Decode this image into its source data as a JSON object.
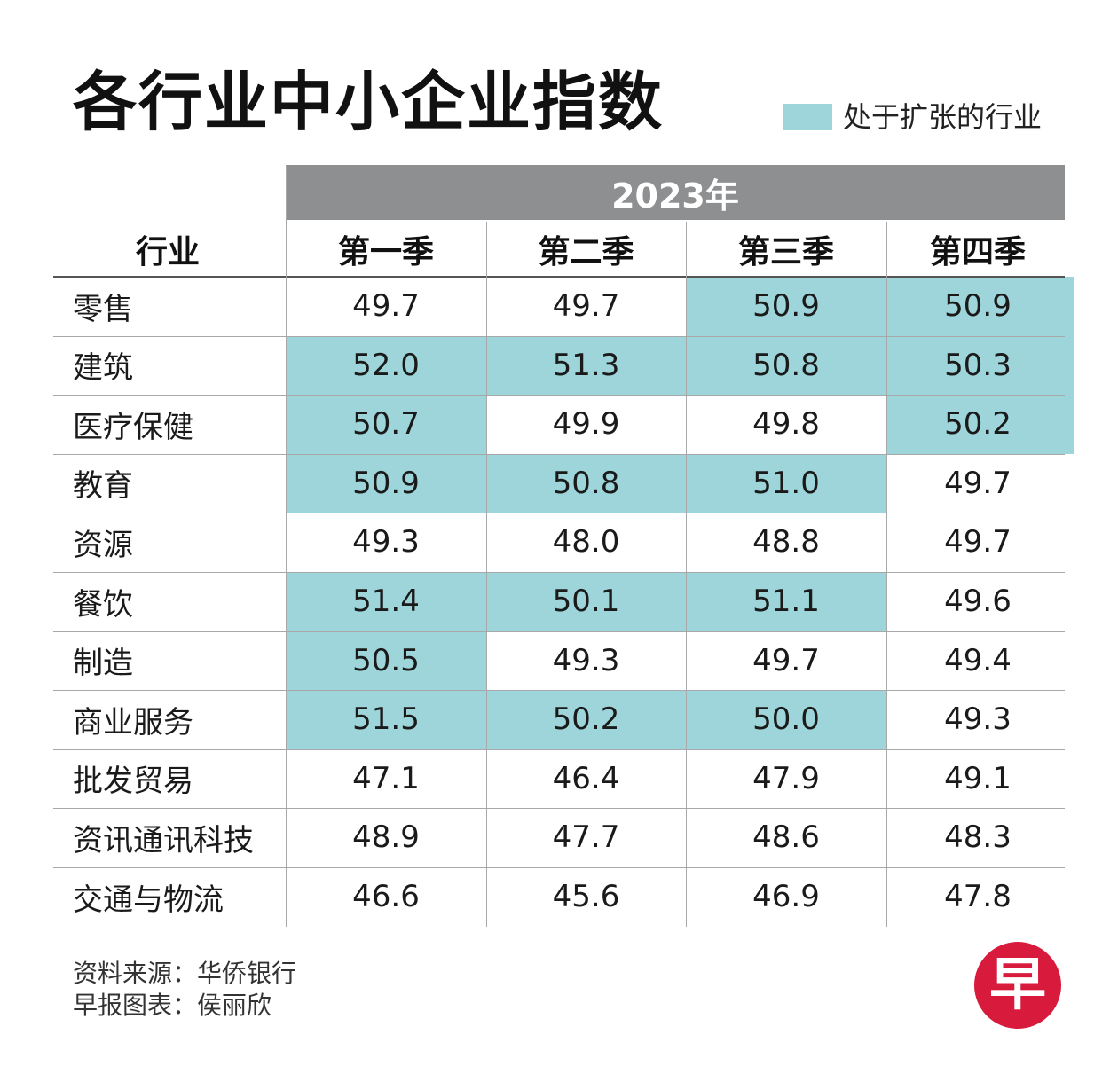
{
  "title": "各行业中小企业指数",
  "legend": {
    "label": "处于扩张的行业",
    "color": "#9dd5da"
  },
  "colors": {
    "header_band": "#8e8f91",
    "highlight": "#9dd5da"
  },
  "chart_data": {
    "type": "table",
    "title": "各行业中小企业指数",
    "year_label": "2023年",
    "row_header": "行业",
    "columns": [
      "第一季",
      "第二季",
      "第三季",
      "第四季"
    ],
    "rows": [
      {
        "label": "零售",
        "values": [
          "49.7",
          "49.7",
          "50.9",
          "50.9"
        ],
        "expanding": [
          false,
          false,
          true,
          true
        ]
      },
      {
        "label": "建筑",
        "values": [
          "52.0",
          "51.3",
          "50.8",
          "50.3"
        ],
        "expanding": [
          true,
          true,
          true,
          true
        ]
      },
      {
        "label": "医疗保健",
        "values": [
          "50.7",
          "49.9",
          "49.8",
          "50.2"
        ],
        "expanding": [
          true,
          false,
          false,
          true
        ]
      },
      {
        "label": "教育",
        "values": [
          "50.9",
          "50.8",
          "51.0",
          "49.7"
        ],
        "expanding": [
          true,
          true,
          true,
          false
        ]
      },
      {
        "label": "资源",
        "values": [
          "49.3",
          "48.0",
          "48.8",
          "49.7"
        ],
        "expanding": [
          false,
          false,
          false,
          false
        ]
      },
      {
        "label": "餐饮",
        "values": [
          "51.4",
          "50.1",
          "51.1",
          "49.6"
        ],
        "expanding": [
          true,
          true,
          true,
          false
        ]
      },
      {
        "label": "制造",
        "values": [
          "50.5",
          "49.3",
          "49.7",
          "49.4"
        ],
        "expanding": [
          true,
          false,
          false,
          false
        ]
      },
      {
        "label": "商业服务",
        "values": [
          "51.5",
          "50.2",
          "50.0",
          "49.3"
        ],
        "expanding": [
          true,
          true,
          true,
          false
        ]
      },
      {
        "label": "批发贸易",
        "values": [
          "47.1",
          "46.4",
          "47.9",
          "49.1"
        ],
        "expanding": [
          false,
          false,
          false,
          false
        ]
      },
      {
        "label": "资讯通讯科技",
        "values": [
          "48.9",
          "47.7",
          "48.6",
          "48.3"
        ],
        "expanding": [
          false,
          false,
          false,
          false
        ]
      },
      {
        "label": "交通与物流",
        "values": [
          "46.6",
          "45.6",
          "46.9",
          "47.8"
        ],
        "expanding": [
          false,
          false,
          false,
          false
        ]
      }
    ]
  },
  "source": {
    "line1": "资料来源：华侨银行",
    "line2": "早报图表：侯丽欣"
  },
  "logo": {
    "glyph": "早"
  }
}
